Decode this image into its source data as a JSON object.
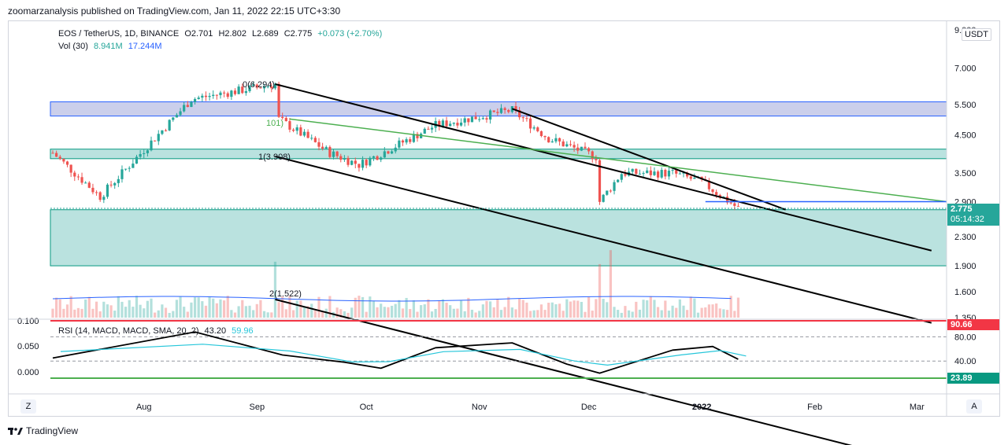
{
  "header": {
    "published": "zoomarzanalysis published on TradingView.com, Jan 11, 2022 22:15 UTC+3:30"
  },
  "legend": {
    "symbol": "EOS / TetherUS, 1D, BINANCE",
    "open": "O2.701",
    "high": "H2.802",
    "low": "L2.689",
    "close": "C2.775",
    "change": "+0.073 (+2.70%)",
    "vol_label": "Vol (30)",
    "vol_value": "8.941M",
    "vol_ma": "17.244M",
    "rsi_label": "RSI (14, MACD, MACD, SMA, 20, 2)",
    "rsi_value": "43.20",
    "rsi_ma": "59.96"
  },
  "currency": "USDT",
  "price_tag": {
    "price": "2.775",
    "countdown": "05:14:32"
  },
  "rsi_tags": {
    "upper": "90.66",
    "lower": "23.89"
  },
  "fib_labels": {
    "level0": "0(6.294)",
    "level1": "1(3.908)",
    "level2": "2(1.522)",
    "partial": "101)"
  },
  "footer": {
    "brand": "TradingView"
  },
  "buttons": {
    "left": "Z",
    "right": "A"
  },
  "colors": {
    "up": "#26a69a",
    "down": "#ef5350",
    "vol_ma": "#2962ff",
    "zone_blue": "#c5cae9",
    "zone_teal": "#b2dfdb",
    "trend_green": "#4caf50",
    "rsi_line": "#000000",
    "rsi_ma": "#26c6da",
    "tag_red": "#f23645",
    "tag_green": "#089981",
    "price_tag": "#26a69a"
  },
  "chart_data": {
    "type": "candlestick",
    "title": "EOS / TetherUS, 1D, BINANCE",
    "y_scale": "log",
    "ylim": [
      1.35,
      9
    ],
    "price_axis_ticks": [
      "9.000",
      "7.000",
      "5.500",
      "4.500",
      "3.500",
      "2.900",
      "2.300",
      "1.900",
      "1.600",
      "1.350"
    ],
    "time_axis_ticks": [
      "Aug",
      "Sep",
      "Oct",
      "Nov",
      "Dec",
      "2022",
      "Feb",
      "Mar"
    ],
    "date_range": [
      "2021-07-07",
      "2022-01-11"
    ],
    "key_points": [
      {
        "date": "2021-07-07",
        "price": 4.0
      },
      {
        "date": "2021-07-20",
        "price": 3.0
      },
      {
        "date": "2021-08-14",
        "price": 5.7
      },
      {
        "date": "2021-09-06",
        "price": 6.29
      },
      {
        "date": "2021-09-07",
        "price": 5.0
      },
      {
        "date": "2021-09-21",
        "price": 4.0
      },
      {
        "date": "2021-09-29",
        "price": 3.7
      },
      {
        "date": "2021-10-20",
        "price": 4.8
      },
      {
        "date": "2021-11-10",
        "price": 5.3
      },
      {
        "date": "2021-11-20",
        "price": 4.4
      },
      {
        "date": "2021-12-03",
        "price": 3.9
      },
      {
        "date": "2021-12-04",
        "price": 2.9
      },
      {
        "date": "2021-12-10",
        "price": 3.5
      },
      {
        "date": "2021-12-24",
        "price": 3.5
      },
      {
        "date": "2022-01-01",
        "price": 3.3
      },
      {
        "date": "2022-01-11",
        "price": 2.775
      }
    ],
    "last": {
      "open": 2.701,
      "high": 2.802,
      "low": 2.689,
      "close": 2.775,
      "change": 0.073,
      "change_pct": 2.7
    },
    "volume": {
      "last": "8.941M",
      "ma30": "17.244M"
    },
    "fib_channel_levels": [
      {
        "level": 0,
        "price": 6.294
      },
      {
        "level": 1,
        "price": 3.908
      },
      {
        "level": 2,
        "price": 1.522
      }
    ],
    "zones": [
      {
        "name": "upper",
        "price_range": [
          5.1,
          5.6
        ]
      },
      {
        "name": "middle",
        "price_range": [
          3.85,
          4.1
        ]
      },
      {
        "name": "lower",
        "price_range": [
          1.9,
          2.75
        ]
      }
    ],
    "rsi": {
      "value": 43.2,
      "ma": 59.96,
      "axis_ticks": [
        "80.00",
        "40.00"
      ],
      "left_axis_ticks": [
        "0.100",
        "0.050",
        "0.000"
      ],
      "bands": {
        "upper": 90.66,
        "lower": 23.89
      },
      "key_points": [
        {
          "date": "2021-07-07",
          "value": 45
        },
        {
          "date": "2021-08-15",
          "value": 88
        },
        {
          "date": "2021-09-08",
          "value": 50
        },
        {
          "date": "2021-09-25",
          "value": 38
        },
        {
          "date": "2021-10-05",
          "value": 28
        },
        {
          "date": "2021-10-20",
          "value": 62
        },
        {
          "date": "2021-11-10",
          "value": 70
        },
        {
          "date": "2021-11-25",
          "value": 35
        },
        {
          "date": "2021-12-04",
          "value": 20
        },
        {
          "date": "2021-12-24",
          "value": 58
        },
        {
          "date": "2022-01-04",
          "value": 64
        },
        {
          "date": "2022-01-11",
          "value": 43
        }
      ]
    }
  }
}
